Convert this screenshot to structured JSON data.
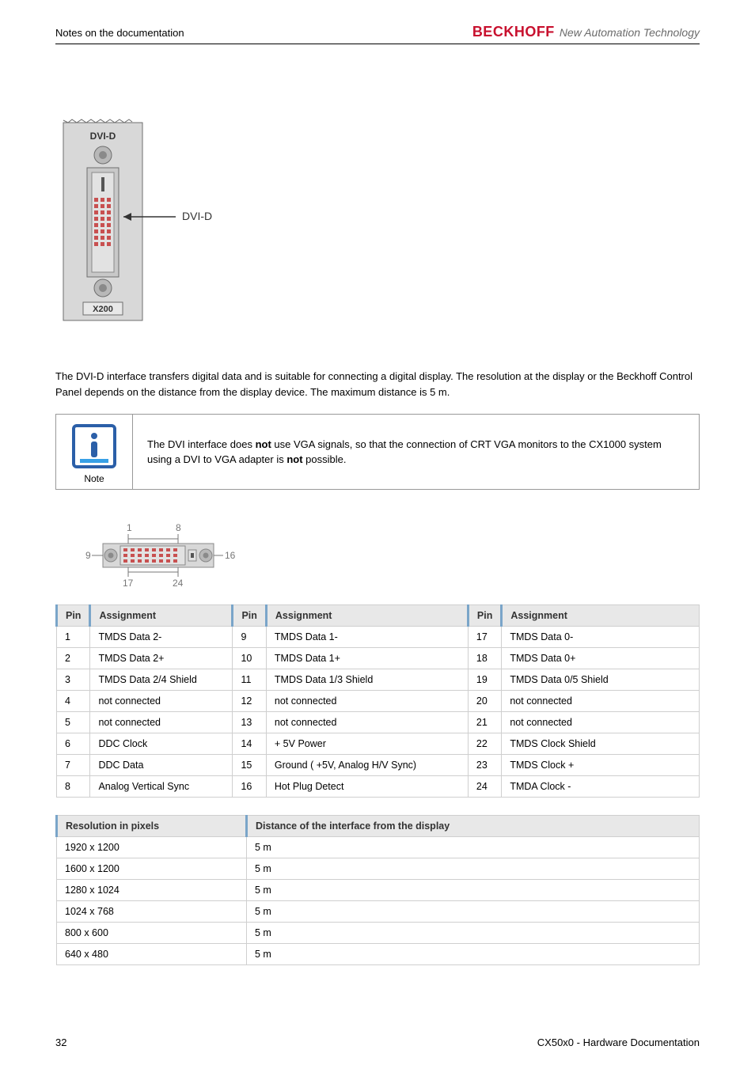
{
  "header": {
    "left": "Notes on the documentation",
    "brand": "BECKHOFF",
    "tagline": "New Automation Technology"
  },
  "device_figure": {
    "top_label": "DVI-D",
    "callout": "DVI-D",
    "bottom_label": "X200"
  },
  "body_text": "The DVI-D interface transfers digital data and is suitable for connecting a digital display. The resolution at the display or the Beckhoff Control Panel depends on the distance from the display device. The maximum distance is 5 m.",
  "note": {
    "label": "Note",
    "pre": "The DVI interface does ",
    "em1": "not",
    "mid": " use VGA signals, so that the connection of CRT VGA monitors to the CX1000 system using a DVI to VGA adapter is ",
    "em2": "not",
    "post": " possible."
  },
  "pinout_labels": {
    "n1": "1",
    "n8": "8",
    "n9": "9",
    "n16": "16",
    "n17": "17",
    "n24": "24"
  },
  "pin_table": {
    "headers": [
      "Pin",
      "Assignment",
      "Pin",
      "Assignment",
      "Pin",
      "Assignment"
    ],
    "rows": [
      [
        "1",
        "TMDS Data 2-",
        "9",
        "TMDS Data 1-",
        "17",
        "TMDS Data 0-"
      ],
      [
        "2",
        "TMDS Data 2+",
        "10",
        "TMDS Data 1+",
        "18",
        "TMDS Data 0+"
      ],
      [
        "3",
        "TMDS Data 2/4 Shield",
        "11",
        "TMDS Data 1/3 Shield",
        "19",
        "TMDS Data 0/5 Shield"
      ],
      [
        "4",
        "not connected",
        "12",
        "not connected",
        "20",
        "not connected"
      ],
      [
        "5",
        "not connected",
        "13",
        "not connected",
        "21",
        "not connected"
      ],
      [
        "6",
        "DDC Clock",
        "14",
        "+ 5V Power",
        "22",
        "TMDS Clock Shield"
      ],
      [
        "7",
        "DDC Data",
        "15",
        "Ground ( +5V, Analog H/V Sync)",
        "23",
        "TMDS Clock +"
      ],
      [
        "8",
        "Analog Vertical Sync",
        "16",
        "Hot Plug Detect",
        "24",
        "TMDA Clock -"
      ]
    ]
  },
  "res_table": {
    "headers": [
      "Resolution in pixels",
      "Distance of the interface from the display"
    ],
    "rows": [
      [
        "1920 x 1200",
        "5 m"
      ],
      [
        "1600 x 1200",
        "5 m"
      ],
      [
        "1280 x 1024",
        "5 m"
      ],
      [
        "1024 x 768",
        "5 m"
      ],
      [
        "800 x 600",
        "5 m"
      ],
      [
        "640 x 480",
        "5 m"
      ]
    ]
  },
  "footer": {
    "page": "32",
    "doc": "CX50x0 - Hardware Documentation"
  },
  "colors": {
    "brand": "#c8102e",
    "border": "#cfcfcf",
    "th_bg": "#e8e8e8",
    "th_accent": "#7aa5c9",
    "note_border": "#999999",
    "icon_blue_outer": "#2b5fa8",
    "icon_blue_inner": "#37a0e6",
    "pin_red": "#c85050",
    "pin_gold": "#b89a5a",
    "pin_metal": "#b8b8b8",
    "pin_body": "#d8d8d8",
    "module_gray": "#d8d8d8",
    "module_dark": "#8a8a8a",
    "module_border": "#6e6e6e"
  }
}
